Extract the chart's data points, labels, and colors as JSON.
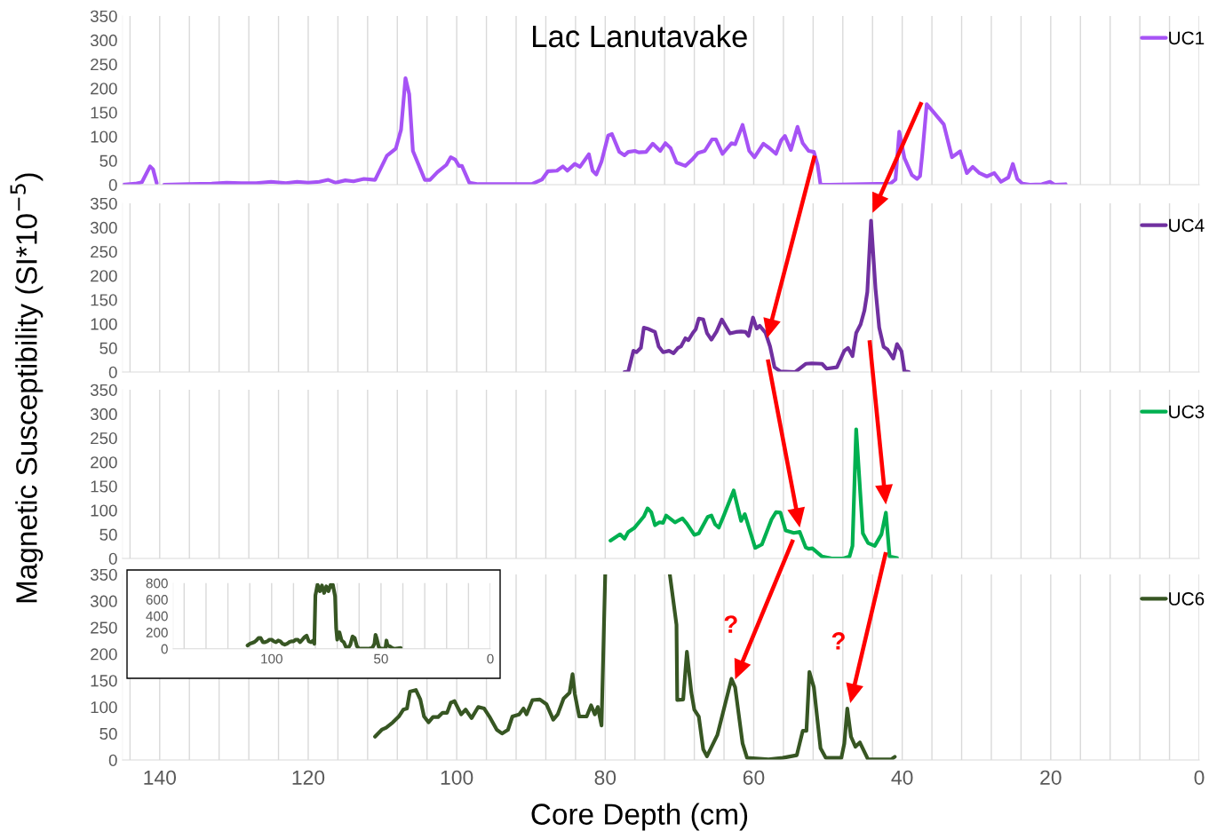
{
  "chart_data": [
    {
      "type": "line",
      "title": "Lac Lanutavake",
      "ylabel": "Magnetic Susceptibility (SI*10$^{−5}$)",
      "xlim": [
        145,
        0
      ],
      "xticks": [
        {
          "value": 144,
          "label": null
        },
        {
          "value": 140,
          "label": null
        },
        {
          "value": 136,
          "label": null
        },
        {
          "value": 132,
          "label": null
        },
        {
          "value": 128,
          "label": null
        },
        {
          "value": 124,
          "label": null
        },
        {
          "value": 120,
          "label": null
        },
        {
          "value": 116,
          "label": null
        },
        {
          "value": 112,
          "label": null
        },
        {
          "value": 108,
          "label": null
        },
        {
          "value": 104,
          "label": null
        },
        {
          "value": 100,
          "label": null
        },
        {
          "value": 96,
          "label": null
        },
        {
          "value": 92,
          "label": null
        },
        {
          "value": 88,
          "label": null
        },
        {
          "value": 84,
          "label": null
        },
        {
          "value": 80,
          "label": null
        },
        {
          "value": 76,
          "label": null
        },
        {
          "value": 72,
          "label": null
        },
        {
          "value": 68,
          "label": null
        },
        {
          "value": 64,
          "label": null
        },
        {
          "value": 60,
          "label": null
        },
        {
          "value": 56,
          "label": null
        },
        {
          "value": 52,
          "label": null
        },
        {
          "value": 48,
          "label": null
        },
        {
          "value": 44,
          "label": null
        },
        {
          "value": 40,
          "label": null
        },
        {
          "value": 36,
          "label": null
        },
        {
          "value": 32,
          "label": null
        },
        {
          "value": 28,
          "label": null
        },
        {
          "value": 24,
          "label": null
        },
        {
          "value": 20,
          "label": null
        },
        {
          "value": 16,
          "label": null
        },
        {
          "value": 12,
          "label": null
        },
        {
          "value": 8,
          "label": null
        },
        {
          "value": 4,
          "label": null
        },
        {
          "value": 0,
          "label": null
        }
      ],
      "ylim": [
        0,
        350
      ],
      "yticks": [
        0,
        50,
        100,
        150,
        200,
        250,
        300,
        350
      ],
      "grid": "x",
      "legend": "top right",
      "tick_labels": "y",
      "series": [
        {
          "name": "UC1",
          "color": "#a653f5",
          "x": [
            145,
            143.3,
            142.4,
            141.3,
            140.9,
            140.4,
            139.9,
            139.4,
            136,
            133,
            131,
            129,
            127,
            125,
            123,
            121.5,
            120,
            118.5,
            117.3,
            116.3,
            115,
            113.9,
            112.5,
            111,
            109.4,
            108.2,
            107.5,
            106.9,
            106.4,
            105.9,
            104.3,
            103.6,
            102.6,
            101.4,
            100.8,
            100.2,
            99.7,
            99.3,
            98.3,
            97.1,
            89.9,
            88.5,
            87.7,
            86.5,
            85.7,
            85.1,
            84.1,
            83.4,
            82.2,
            81.7,
            81.2,
            80.5,
            79.6,
            79.1,
            78.1,
            77.4,
            76.9,
            76.0,
            75.5,
            74.5,
            73.6,
            72.6,
            71.9,
            71.2,
            70.4,
            69.2,
            68.3,
            67.5,
            66.6,
            65.6,
            65.1,
            64.2,
            63.0,
            62.5,
            61.5,
            60.6,
            59.9,
            58.7,
            57.9,
            57.0,
            56.3,
            55.8,
            55.0,
            54.1,
            53.4,
            52.6,
            51.9,
            51.4,
            51.0,
            49.8,
            45.0,
            41.6,
            40.9,
            40.4,
            39.7,
            38.7,
            38.0,
            37.6,
            37.3,
            36.7,
            35.8,
            35.1,
            34.4,
            33.3,
            32.2,
            31.3,
            30.5,
            29.6,
            28.6,
            27.6,
            26.7,
            25.7,
            25.1,
            24.5,
            23.8,
            22.8,
            21.2,
            20.1,
            19.5,
            18.0
          ],
          "values": [
            0,
            2,
            5,
            38,
            32,
            3,
            null,
            0,
            1,
            2,
            4,
            3,
            3,
            6,
            3,
            6,
            4,
            6,
            10,
            4,
            9,
            7,
            12,
            10,
            60,
            75,
            114,
            221,
            188,
            70,
            10,
            10,
            26,
            41,
            57,
            52,
            39,
            39,
            4,
            1,
            1,
            11,
            28,
            29,
            38,
            29,
            43,
            37,
            63,
            29,
            21,
            48,
            102,
            105,
            68,
            61,
            68,
            70,
            67,
            68,
            85,
            70,
            86,
            76,
            46,
            39,
            52,
            66,
            70,
            94,
            94,
            64,
            86,
            84,
            124,
            70,
            57,
            85,
            76,
            64,
            92,
            101,
            72,
            120,
            86,
            70,
            68,
            41,
            0,
            0,
            1,
            2,
            11,
            110,
            55,
            20,
            12,
            18,
            63,
            167,
            151,
            138,
            125,
            57,
            69,
            24,
            37,
            24,
            17,
            24,
            6,
            15,
            43,
            12,
            2,
            0,
            1,
            6,
            0,
            1
          ]
        }
      ]
    },
    {
      "type": "line",
      "xlim": [
        145,
        0
      ],
      "xticks": [
        {
          "value": 144,
          "label": null
        },
        {
          "value": 140,
          "label": null
        },
        {
          "value": 136,
          "label": null
        },
        {
          "value": 132,
          "label": null
        },
        {
          "value": 128,
          "label": null
        },
        {
          "value": 124,
          "label": null
        },
        {
          "value": 120,
          "label": null
        },
        {
          "value": 116,
          "label": null
        },
        {
          "value": 112,
          "label": null
        },
        {
          "value": 108,
          "label": null
        },
        {
          "value": 104,
          "label": null
        },
        {
          "value": 100,
          "label": null
        },
        {
          "value": 96,
          "label": null
        },
        {
          "value": 92,
          "label": null
        },
        {
          "value": 88,
          "label": null
        },
        {
          "value": 84,
          "label": null
        },
        {
          "value": 80,
          "label": null
        },
        {
          "value": 76,
          "label": null
        },
        {
          "value": 72,
          "label": null
        },
        {
          "value": 68,
          "label": null
        },
        {
          "value": 64,
          "label": null
        },
        {
          "value": 60,
          "label": null
        },
        {
          "value": 56,
          "label": null
        },
        {
          "value": 52,
          "label": null
        },
        {
          "value": 48,
          "label": null
        },
        {
          "value": 44,
          "label": null
        },
        {
          "value": 40,
          "label": null
        },
        {
          "value": 36,
          "label": null
        },
        {
          "value": 32,
          "label": null
        },
        {
          "value": 28,
          "label": null
        },
        {
          "value": 24,
          "label": null
        },
        {
          "value": 20,
          "label": null
        },
        {
          "value": 16,
          "label": null
        },
        {
          "value": 12,
          "label": null
        },
        {
          "value": 8,
          "label": null
        },
        {
          "value": 4,
          "label": null
        },
        {
          "value": 0,
          "label": null
        }
      ],
      "ylim": [
        0,
        350
      ],
      "yticks": [
        0,
        50,
        100,
        150,
        200,
        250,
        300,
        350
      ],
      "grid": "x",
      "legend": "top right",
      "tick_labels": "y",
      "series": [
        {
          "name": "UC4",
          "color": "#7030a0",
          "x": [
            77.4,
            76.9,
            76.2,
            75.8,
            75.2,
            74.8,
            74.3,
            73.3,
            72.8,
            72.2,
            71.4,
            70.8,
            70.2,
            69.8,
            69.2,
            68.8,
            68.2,
            67.8,
            67.4,
            66.8,
            66.3,
            65.7,
            65.0,
            64.3,
            63.2,
            62.4,
            61.7,
            61.1,
            60.7,
            60.1,
            59.6,
            59.2,
            58.4,
            57.8,
            57.2,
            56.4,
            54.4,
            53.0,
            52.2,
            50.8,
            50.2,
            48.8,
            47.8,
            47.3,
            46.7,
            46.2,
            45.6,
            45.1,
            44.7,
            44.2,
            43.6,
            43.1,
            42.5,
            42.0,
            41.2,
            40.7,
            40.1,
            39.7,
            39.1
          ],
          "values": [
            0,
            1,
            44,
            41,
            50,
            92,
            90,
            83,
            53,
            41,
            44,
            39,
            50,
            53,
            70,
            66,
            81,
            89,
            111,
            109,
            81,
            67,
            84,
            109,
            80,
            83,
            84,
            83,
            75,
            113,
            90,
            96,
            81,
            53,
            10,
            1,
            0,
            17,
            18,
            17,
            7,
            10,
            44,
            50,
            33,
            81,
            99,
            127,
            166,
            314,
            173,
            92,
            52,
            47,
            28,
            58,
            43,
            2,
            0
          ]
        }
      ]
    },
    {
      "type": "line",
      "xlim": [
        145,
        0
      ],
      "xticks": [
        {
          "value": 144,
          "label": null
        },
        {
          "value": 140,
          "label": null
        },
        {
          "value": 136,
          "label": null
        },
        {
          "value": 132,
          "label": null
        },
        {
          "value": 128,
          "label": null
        },
        {
          "value": 124,
          "label": null
        },
        {
          "value": 120,
          "label": null
        },
        {
          "value": 116,
          "label": null
        },
        {
          "value": 112,
          "label": null
        },
        {
          "value": 108,
          "label": null
        },
        {
          "value": 104,
          "label": null
        },
        {
          "value": 100,
          "label": null
        },
        {
          "value": 96,
          "label": null
        },
        {
          "value": 92,
          "label": null
        },
        {
          "value": 88,
          "label": null
        },
        {
          "value": 84,
          "label": null
        },
        {
          "value": 80,
          "label": null
        },
        {
          "value": 76,
          "label": null
        },
        {
          "value": 72,
          "label": null
        },
        {
          "value": 68,
          "label": null
        },
        {
          "value": 64,
          "label": null
        },
        {
          "value": 60,
          "label": null
        },
        {
          "value": 56,
          "label": null
        },
        {
          "value": 52,
          "label": null
        },
        {
          "value": 48,
          "label": null
        },
        {
          "value": 44,
          "label": null
        },
        {
          "value": 40,
          "label": null
        },
        {
          "value": 36,
          "label": null
        },
        {
          "value": 32,
          "label": null
        },
        {
          "value": 28,
          "label": null
        },
        {
          "value": 24,
          "label": null
        },
        {
          "value": 20,
          "label": null
        },
        {
          "value": 16,
          "label": null
        },
        {
          "value": 12,
          "label": null
        },
        {
          "value": 8,
          "label": null
        },
        {
          "value": 4,
          "label": null
        },
        {
          "value": 0,
          "label": null
        }
      ],
      "ylim": [
        0,
        350
      ],
      "yticks": [
        0,
        50,
        100,
        150,
        200,
        250,
        300,
        350
      ],
      "grid": "x",
      "legend": "top right",
      "tick_labels": "y",
      "series": [
        {
          "name": "UC3",
          "color": "#00b050",
          "x": [
            79.3,
            78.0,
            77.4,
            76.9,
            76.1,
            74.8,
            74.3,
            73.8,
            73.3,
            72.7,
            72.2,
            71.8,
            70.6,
            69.6,
            69.0,
            68.0,
            67.4,
            66.2,
            65.7,
            65.2,
            64.7,
            64.0,
            62.7,
            61.7,
            61.2,
            59.8,
            58.9,
            57.6,
            57.0,
            56.4,
            55.7,
            54.6,
            53.8,
            53.0,
            52.6,
            52.1,
            50.8,
            49.5,
            47.9,
            47.1,
            46.7,
            46.2,
            45.3,
            44.6,
            43.7,
            42.8,
            42.2,
            41.7,
            40.7
          ],
          "values": [
            37,
            50,
            41,
            55,
            63,
            87,
            104,
            96,
            69,
            75,
            74,
            89,
            75,
            83,
            72,
            49,
            52,
            86,
            89,
            71,
            64,
            90,
            141,
            78,
            92,
            22,
            29,
            81,
            96,
            95,
            58,
            53,
            55,
            23,
            20,
            21,
            4,
            0,
            0,
            4,
            26,
            268,
            52,
            32,
            26,
            50,
            95,
            4,
            1
          ]
        }
      ]
    },
    {
      "type": "line",
      "xlabel": "Core Depth (cm)",
      "annotations": [
        "?",
        "?"
      ],
      "xlim": [
        145,
        0
      ],
      "xticks": [
        {
          "value": 144,
          "label": null
        },
        140,
        {
          "value": 136,
          "label": null
        },
        {
          "value": 132,
          "label": null
        },
        {
          "value": 128,
          "label": null
        },
        {
          "value": 124,
          "label": null
        },
        120,
        {
          "value": 116,
          "label": null
        },
        {
          "value": 112,
          "label": null
        },
        {
          "value": 108,
          "label": null
        },
        {
          "value": 104,
          "label": null
        },
        100,
        {
          "value": 96,
          "label": null
        },
        {
          "value": 92,
          "label": null
        },
        {
          "value": 88,
          "label": null
        },
        {
          "value": 84,
          "label": null
        },
        80,
        {
          "value": 76,
          "label": null
        },
        {
          "value": 72,
          "label": null
        },
        {
          "value": 68,
          "label": null
        },
        {
          "value": 64,
          "label": null
        },
        60,
        {
          "value": 56,
          "label": null
        },
        {
          "value": 52,
          "label": null
        },
        {
          "value": 48,
          "label": null
        },
        {
          "value": 44,
          "label": null
        },
        40,
        {
          "value": 36,
          "label": null
        },
        {
          "value": 32,
          "label": null
        },
        {
          "value": 28,
          "label": null
        },
        {
          "value": 24,
          "label": null
        },
        20,
        {
          "value": 16,
          "label": null
        },
        {
          "value": 12,
          "label": null
        },
        {
          "value": 8,
          "label": null
        },
        {
          "value": 4,
          "label": null
        },
        0
      ],
      "ylim": [
        0,
        350
      ],
      "yticks": [
        0,
        50,
        100,
        150,
        200,
        250,
        300,
        350
      ],
      "grid": "x",
      "legend": "top right",
      "series": [
        {
          "name": "UC6",
          "color": "#375623",
          "x": [
            111.0,
            110.1,
            109.5,
            108.6,
            107.8,
            107.2,
            106.7,
            106.3,
            105.5,
            104.9,
            104.4,
            103.8,
            103.2,
            102.5,
            101.9,
            101.3,
            100.8,
            100.3,
            99.4,
            98.8,
            98.0,
            97.1,
            96.3,
            95.6,
            94.6,
            93.9,
            93.1,
            92.5,
            91.6,
            91.0,
            90.6,
            89.8,
            88.8,
            87.9,
            87.0,
            86.4,
            85.6,
            84.8,
            84.4,
            84.1,
            83.5,
            82.5,
            81.9,
            81.4,
            81.0,
            80.5,
            80.0,
            79.2,
            78.3,
            77.4,
            76.5,
            75.5,
            74.5,
            73.5,
            72.4,
            71.3,
            70.4,
            70.3,
            69.5,
            69.0,
            68.4,
            68.0,
            67.4,
            66.8,
            66.3,
            64.9,
            63.0,
            62.5,
            61.5,
            60.9,
            58.0,
            56.1,
            54.2,
            53.4,
            52.9,
            52.5,
            51.9,
            51.0,
            50.3,
            48.2,
            47.8,
            47.4,
            46.9,
            46.3,
            45.7,
            44.6,
            41.5,
            41.0
          ],
          "values": [
            44,
            57,
            61,
            71,
            82,
            95,
            97,
            129,
            132,
            114,
            82,
            71,
            81,
            81,
            89,
            89,
            108,
            111,
            86,
            95,
            79,
            100,
            97,
            82,
            57,
            50,
            57,
            82,
            86,
            97,
            86,
            113,
            114,
            105,
            76,
            86,
            116,
            127,
            162,
            125,
            82,
            82,
            103,
            86,
            100,
            65,
            350,
            null,
            null,
            null,
            null,
            null,
            null,
            null,
            null,
            350,
            255,
            113,
            114,
            204,
            127,
            95,
            82,
            20,
            7,
            47,
            153,
            137,
            31,
            4,
            1,
            4,
            9,
            55,
            55,
            166,
            137,
            22,
            4,
            4,
            31,
            97,
            44,
            25,
            33,
            1,
            1,
            6
          ]
        }
      ]
    },
    {
      "type": "line",
      "xlim": [
        145,
        0
      ],
      "xticks": [
        {
          "value": 140,
          "label": null
        },
        {
          "value": 130,
          "label": null
        },
        {
          "value": 120,
          "label": null
        },
        {
          "value": 110,
          "label": null
        },
        100,
        {
          "value": 90,
          "label": null
        },
        {
          "value": 80,
          "label": null
        },
        {
          "value": 70,
          "label": null
        },
        {
          "value": 60,
          "label": null
        },
        50,
        {
          "value": 40,
          "label": null
        },
        {
          "value": 30,
          "label": null
        },
        {
          "value": 20,
          "label": null
        },
        {
          "value": 10,
          "label": null
        },
        0
      ],
      "ylim": [
        0,
        800
      ],
      "yticks": [
        0,
        200,
        400,
        600,
        800
      ],
      "grid": "x",
      "series": [
        {
          "color": "#375623",
          "x": [
            111,
            110,
            109,
            108,
            107,
            106,
            105,
            104,
            103,
            102,
            101,
            100,
            99,
            98,
            97,
            96,
            95,
            94,
            93,
            92,
            91,
            90,
            89,
            88,
            87,
            86,
            85,
            84,
            83,
            82,
            81,
            80.5,
            80,
            79,
            78,
            77,
            76,
            75,
            74,
            73,
            72,
            71,
            70.5,
            70,
            69,
            68,
            67,
            66,
            65,
            64,
            63,
            62,
            61,
            60,
            58,
            56,
            54,
            53,
            52.5,
            52,
            51,
            50,
            48,
            47.5,
            47,
            46,
            45,
            44,
            41
          ],
          "values": [
            40,
            60,
            70,
            80,
            100,
            130,
            130,
            80,
            80,
            90,
            110,
            110,
            90,
            80,
            100,
            90,
            60,
            50,
            60,
            80,
            90,
            90,
            110,
            110,
            80,
            110,
            140,
            160,
            90,
            80,
            100,
            60,
            650,
            780,
            700,
            770,
            680,
            760,
            700,
            780,
            780,
            640,
            250,
            110,
            200,
            100,
            80,
            20,
            10,
            50,
            150,
            130,
            30,
            0,
            0,
            0,
            10,
            60,
            170,
            130,
            20,
            0,
            0,
            100,
            40,
            30,
            10,
            0,
            10
          ]
        }
      ]
    }
  ]
}
